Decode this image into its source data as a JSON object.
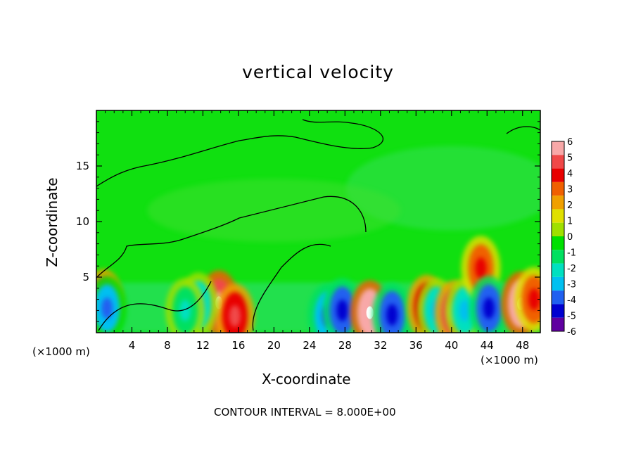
{
  "chart_data": {
    "type": "heatmap",
    "title": "vertical velocity",
    "xlabel": "X-coordinate",
    "ylabel": "Z-coordinate",
    "x_unit_label": "(×1000 m)",
    "x_unit_label_right": "(×1000 m)",
    "xlim": [
      0,
      50
    ],
    "ylim": [
      0,
      20
    ],
    "x_ticks": [
      4,
      8,
      12,
      16,
      20,
      24,
      28,
      32,
      36,
      40,
      44,
      48
    ],
    "y_ticks": [
      5,
      10,
      15
    ],
    "colorbar": {
      "levels": [
        6,
        5,
        4,
        3,
        2,
        1,
        0,
        -1,
        -2,
        -3,
        -4,
        -5,
        -6
      ],
      "colors": [
        "#f8a8a8",
        "#f04848",
        "#e80000",
        "#f06000",
        "#f0a000",
        "#e0e000",
        "#a0e000",
        "#00e000",
        "#00e060",
        "#00e0c0",
        "#00c0f0",
        "#2060f0",
        "#0000d0",
        "#6000a0"
      ]
    },
    "annotation": "CONTOUR INTERVAL = 8.000E+00",
    "features": [
      {
        "x": 0.8,
        "z": 2.8,
        "w": 4.5,
        "kind": "strong_up"
      },
      {
        "x": 1.2,
        "z": 2.2,
        "w": -4,
        "kind": "down"
      },
      {
        "x": 13.8,
        "z": 2.7,
        "w": 5,
        "kind": "up"
      },
      {
        "x": 15.6,
        "z": 1.5,
        "w": 4,
        "kind": "up"
      },
      {
        "x": 11.5,
        "z": 2.5,
        "w": -3,
        "kind": "down"
      },
      {
        "x": 10,
        "z": 2,
        "w": -2,
        "kind": "down"
      },
      {
        "x": 26,
        "z": 1.5,
        "w": -4.5,
        "kind": "down"
      },
      {
        "x": 27.7,
        "z": 2,
        "w": -5,
        "kind": "down"
      },
      {
        "x": 30.8,
        "z": 1.8,
        "w": 5.5,
        "kind": "up"
      },
      {
        "x": 33.3,
        "z": 1.6,
        "w": -5,
        "kind": "down"
      },
      {
        "x": 37.2,
        "z": 2.3,
        "w": 4,
        "kind": "up"
      },
      {
        "x": 38.3,
        "z": 2,
        "w": -3,
        "kind": "down"
      },
      {
        "x": 40.3,
        "z": 1.8,
        "w": 4.5,
        "kind": "up"
      },
      {
        "x": 41.5,
        "z": 2,
        "w": -3,
        "kind": "down"
      },
      {
        "x": 43.3,
        "z": 5.8,
        "w": 3,
        "kind": "up"
      },
      {
        "x": 44.2,
        "z": 2.2,
        "w": -5,
        "kind": "down"
      },
      {
        "x": 47.8,
        "z": 2.6,
        "w": 5.5,
        "kind": "up"
      },
      {
        "x": 49.3,
        "z": 3,
        "w": 3,
        "kind": "up"
      }
    ]
  }
}
